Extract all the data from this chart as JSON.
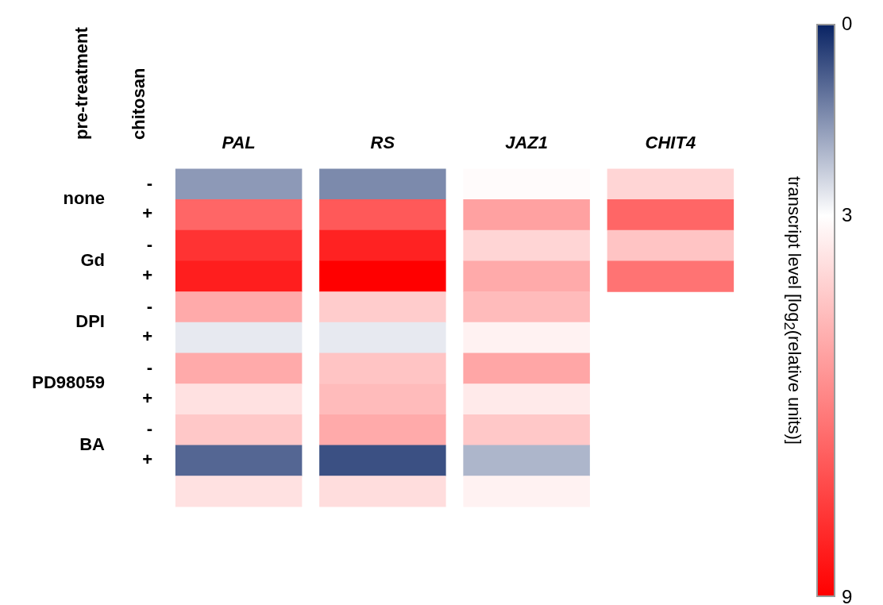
{
  "chart_data": {
    "type": "heatmap",
    "ylabel": "chitosan",
    "y2label": "pre-treatment",
    "clabel": "transcript level [log$_{2}$(relative units)]",
    "categories": [
      "PAL",
      "RS",
      "JAZ1",
      "CHIT4"
    ],
    "y_categories": [
      "-",
      "+",
      "-",
      "+",
      "-",
      "+",
      "-",
      "+",
      "-",
      "+",
      null
    ],
    "y2_categories": [
      "none",
      null,
      "Gd",
      null,
      "DPI",
      null,
      "PD98059",
      null,
      "BA",
      null,
      null
    ],
    "cells": [
      [
        1.6,
        1.4,
        3.1,
        4.0
      ],
      [
        6.6,
        6.9,
        5.2,
        6.6
      ],
      [
        7.8,
        8.2,
        4.0,
        4.4
      ],
      [
        8.3,
        9.0,
        5.0,
        6.3
      ],
      [
        5.0,
        4.2,
        4.6,
        null
      ],
      [
        2.7,
        2.7,
        3.3,
        null
      ],
      [
        5.0,
        4.4,
        5.1,
        null
      ],
      [
        3.7,
        4.6,
        3.5,
        null
      ],
      [
        4.3,
        5.0,
        4.3,
        null
      ],
      [
        0.9,
        0.6,
        2.0,
        null
      ],
      [
        3.7,
        3.8,
        3.3,
        null
      ]
    ],
    "clim": [
      0,
      9
    ],
    "cticks": [
      0,
      3,
      9
    ]
  }
}
